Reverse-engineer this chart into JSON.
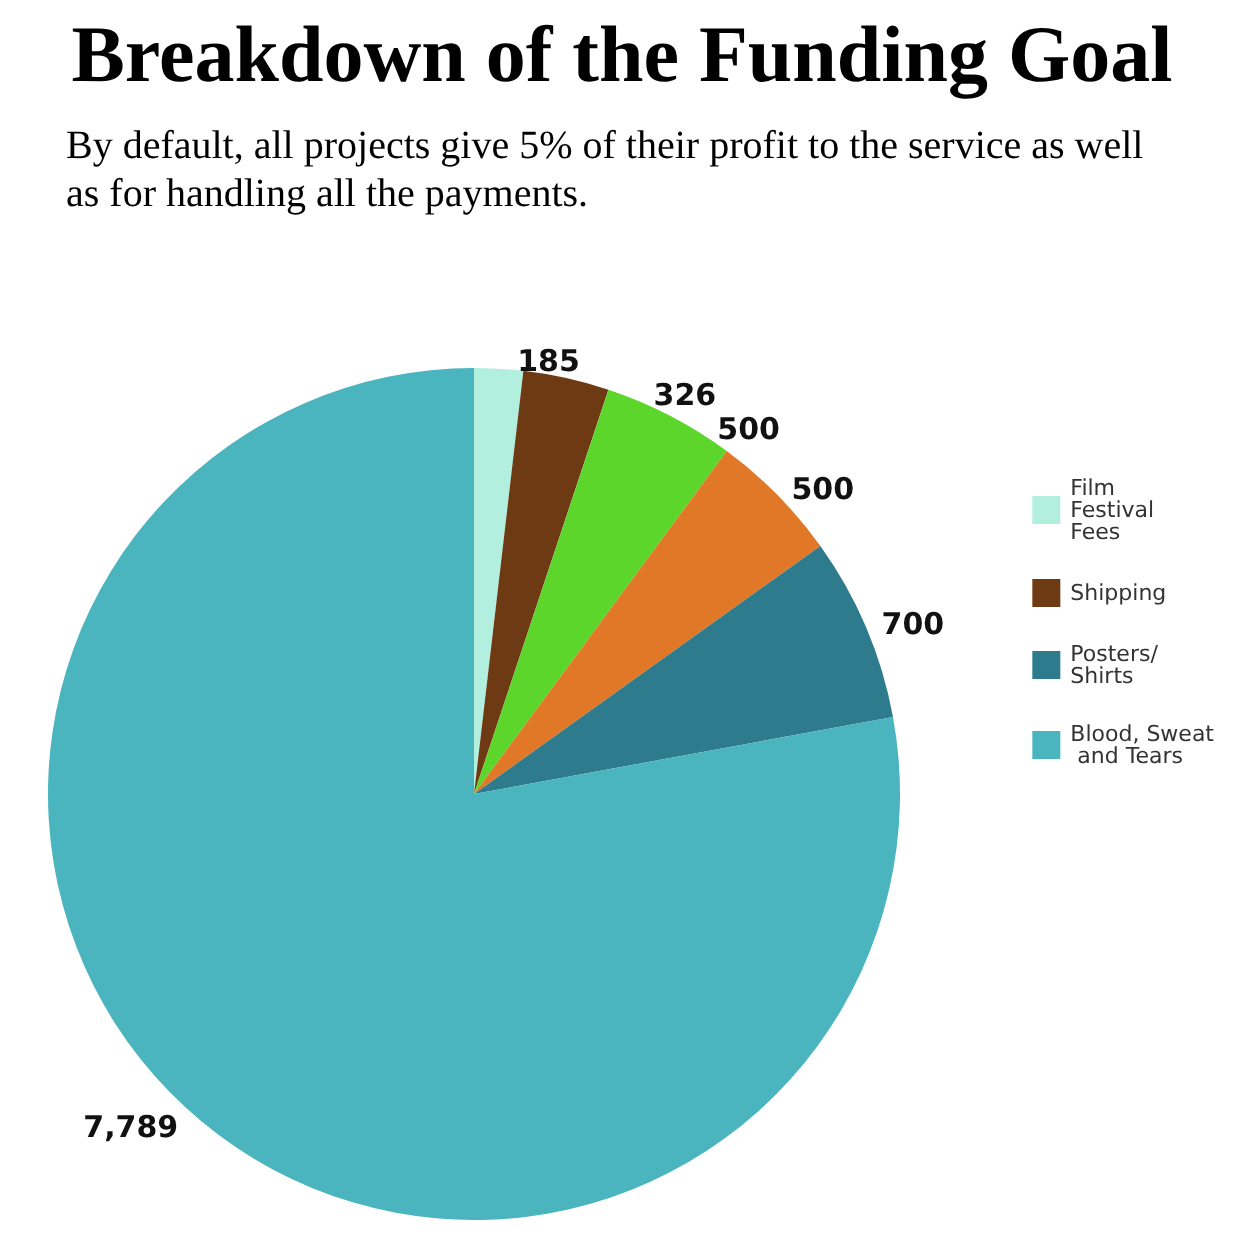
{
  "chart_data": {
    "type": "pie",
    "title": "Breakdown of the Funding Goal",
    "subtitle": "By default, all projects give 5% of their profit to the service as well as for handling all the payments.",
    "categories": [
      "Film Festival Fees",
      "Shipping",
      null,
      null,
      "Posters/Shirts",
      "Blood, Sweat and Tears"
    ],
    "values": [
      185,
      326,
      500,
      500,
      700,
      7789
    ],
    "colors": [
      "#b3efdf",
      "#6e3a14",
      "#5cd62a",
      "#e07828",
      "#2d7b8c",
      "#4ab4bf"
    ],
    "value_labels": [
      "185",
      "326",
      "500",
      "500",
      "700",
      "7,789"
    ],
    "legend": "right"
  }
}
